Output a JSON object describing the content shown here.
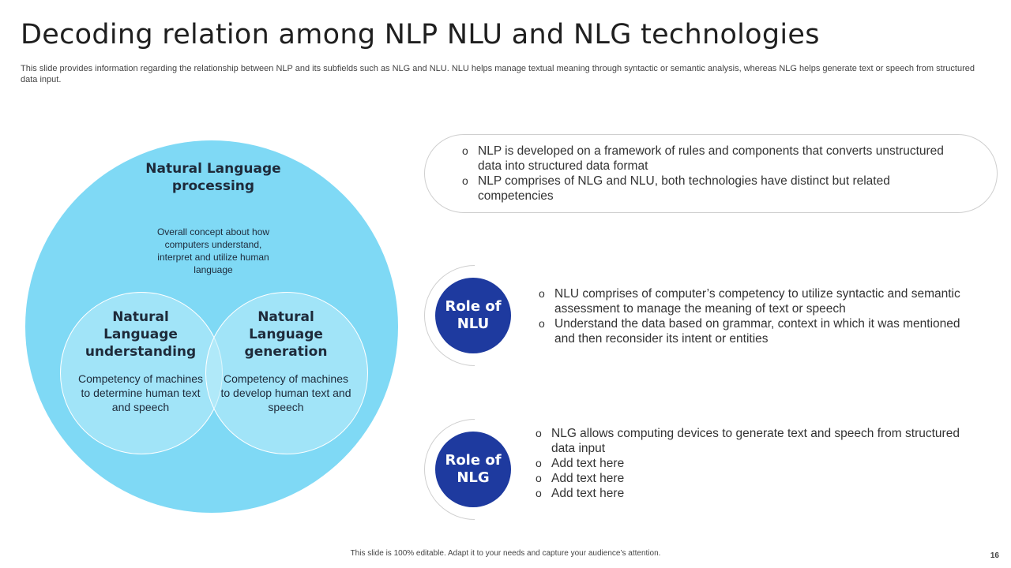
{
  "header": {
    "title": "Decoding relation among NLP NLU and NLG technologies",
    "subtitle": "This slide provides information regarding the relationship between NLP and its subfields such as NLG and NLU. NLU helps manage textual meaning through syntactic or semantic analysis, whereas NLG helps generate text or speech from structured data input."
  },
  "venn": {
    "outer": {
      "title": "Natural Language processing",
      "description": "Overall concept about how computers understand, interpret and utilize human language"
    },
    "left": {
      "title": "Natural Language understanding",
      "description": "Competency of machines to determine human text and speech"
    },
    "right": {
      "title": "Natural Language generation",
      "description": "Competency of machines to develop human text and speech"
    },
    "colors": {
      "outer": "#7fd9f5",
      "inner": "#bfecfa"
    }
  },
  "nlp_box": {
    "bullets": [
      "NLP is developed on a framework of rules and components that converts unstructured data into structured data format",
      "NLP comprises of NLG and NLU, both technologies have distinct but related competencies"
    ]
  },
  "nlu": {
    "label": "Role of NLU",
    "bullets": [
      "NLU comprises of computer’s competency to utilize syntactic and semantic assessment to manage the meaning of text or speech",
      "Understand the data based on grammar, context in which it was mentioned and then reconsider its intent or entities"
    ]
  },
  "nlg": {
    "label": "Role of NLG",
    "bullets": [
      "NLG allows computing devices to generate text and speech from structured data input",
      "Add text here",
      "Add text here",
      "Add text here"
    ]
  },
  "bullet_glyph": "o",
  "accent_color": "#1e3a9f",
  "footer": {
    "note": "This slide is 100% editable. Adapt it to your needs and capture your audience’s attention.",
    "page": "16"
  }
}
